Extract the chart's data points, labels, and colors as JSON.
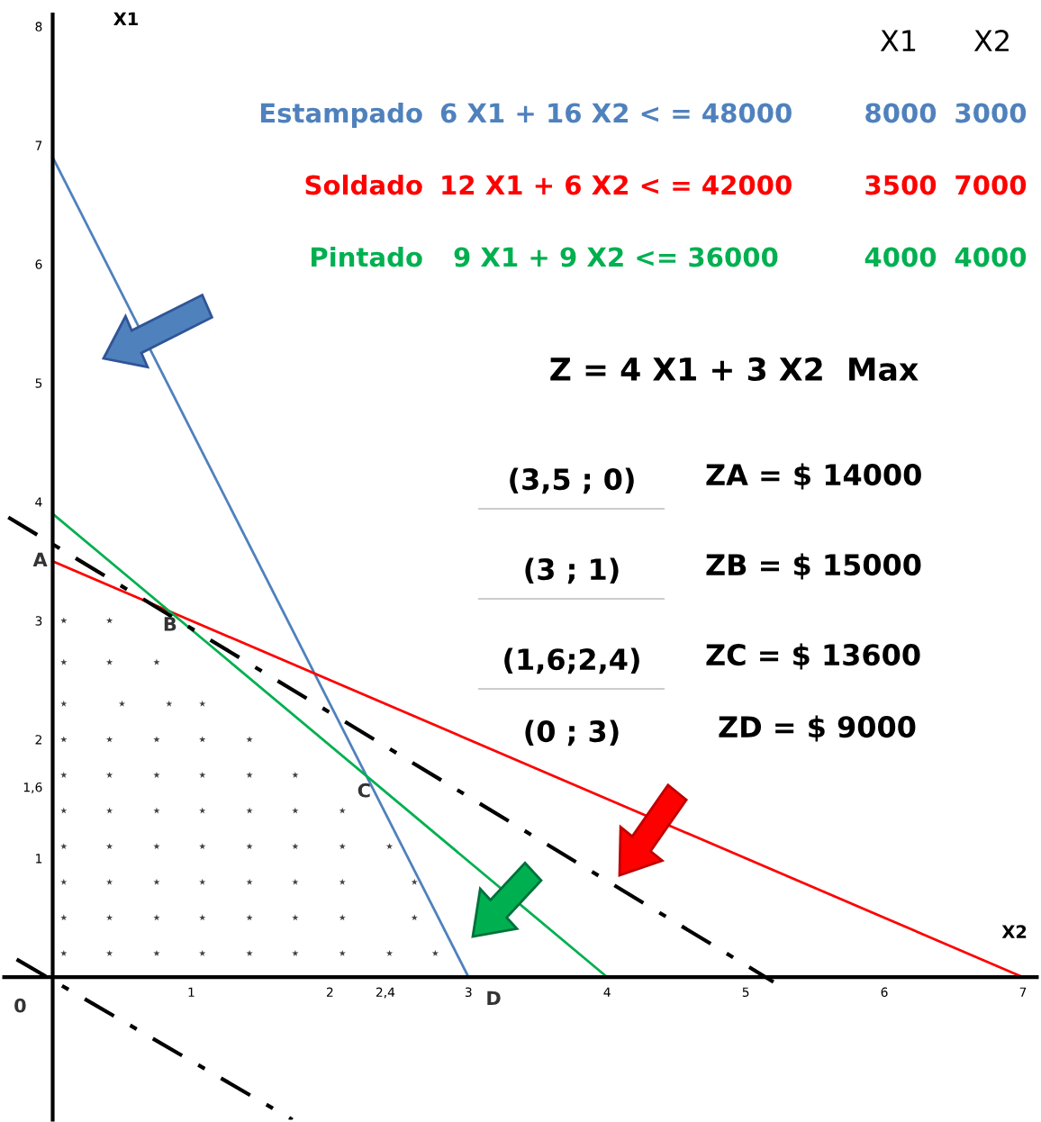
{
  "chart_data": {
    "type": "line",
    "xlabel": "X2",
    "ylabel": "X1",
    "xlim": [
      -0.35,
      7.1
    ],
    "ylim": [
      -1.2,
      8.1
    ],
    "xticks": [
      1,
      2,
      {
        "value": 2.4,
        "label": "2,4"
      },
      3,
      4,
      5,
      6,
      7
    ],
    "yticks": [
      1,
      {
        "value": 1.6,
        "label": "1,6"
      },
      2,
      3,
      4,
      5,
      6,
      7,
      8
    ],
    "grid": false,
    "legend": false,
    "series": [
      {
        "name": "Estampado",
        "color": "#4f81bd",
        "x": [
          0,
          3
        ],
        "values": [
          6.9,
          0
        ]
      },
      {
        "name": "Soldado",
        "color": "#ff0000",
        "x": [
          0,
          7
        ],
        "values": [
          3.5,
          0
        ]
      },
      {
        "name": "Pintado",
        "color": "#00b050",
        "x": [
          0,
          4
        ],
        "values": [
          3.9,
          0
        ]
      },
      {
        "color": "#000000",
        "line_style": "dashed",
        "x": [
          -0.32,
          5.2
        ],
        "values": [
          3.87,
          -0.04
        ]
      },
      {
        "color": "#000000",
        "line_style": "dashed",
        "x": [
          -0.26,
          1.73
        ],
        "values": [
          0.15,
          -1.2
        ]
      },
      {
        "type": "scatter",
        "marker": "star",
        "color": "#404040",
        "x": [
          0.08,
          0.41,
          0.08,
          0.41,
          0.75,
          0.08,
          0.5,
          0.84,
          1.08,
          0.08,
          0.41,
          0.75,
          1.08,
          1.42,
          0.08,
          0.41,
          0.75,
          1.08,
          1.42,
          1.75,
          0.08,
          0.41,
          0.75,
          1.08,
          1.42,
          1.75,
          2.09,
          0.08,
          0.41,
          0.75,
          1.08,
          1.42,
          1.75,
          2.09,
          2.43,
          0.08,
          0.41,
          0.75,
          1.08,
          1.42,
          1.75,
          2.09,
          2.61,
          0.08,
          0.41,
          0.75,
          1.08,
          1.42,
          1.75,
          2.09,
          2.61,
          0.08,
          0.41,
          0.75,
          1.08,
          1.42,
          1.75,
          2.09,
          2.43,
          2.76
        ],
        "values": [
          3.0,
          3.0,
          2.65,
          2.65,
          2.65,
          2.3,
          2.3,
          2.3,
          2.3,
          2.0,
          2.0,
          2.0,
          2.0,
          2.0,
          1.7,
          1.7,
          1.7,
          1.7,
          1.7,
          1.7,
          1.4,
          1.4,
          1.4,
          1.4,
          1.4,
          1.4,
          1.4,
          1.1,
          1.1,
          1.1,
          1.1,
          1.1,
          1.1,
          1.1,
          1.1,
          0.8,
          0.8,
          0.8,
          0.8,
          0.8,
          0.8,
          0.8,
          0.8,
          0.5,
          0.5,
          0.5,
          0.5,
          0.5,
          0.5,
          0.5,
          0.5,
          0.2,
          0.2,
          0.2,
          0.2,
          0.2,
          0.2,
          0.2,
          0.2,
          0.2
        ]
      }
    ],
    "annotations": [
      {
        "text": "A",
        "x": 0,
        "y": 3.5
      },
      {
        "text": "B",
        "x": 1,
        "y": 3
      },
      {
        "text": "C",
        "x": 2.4,
        "y": 1.6
      },
      {
        "text": "D",
        "x": 3,
        "y": 0
      },
      "X1",
      "X2",
      "6 X1 + 16 X2 < = 48000",
      "8000",
      "3000",
      "12 X1 + 6 X2 < = 42000",
      "3500",
      "7000",
      "9 X1 + 9 X2 <= 36000",
      "4000",
      "4000",
      "Z = 4 X1 + 3 X2  Max",
      "(3,5 ; 0)",
      "ZA = $ 14000",
      "(3 ; 1)",
      "ZB = $ 15000",
      "(1,6;2,4)",
      "ZC = $ 13600",
      "(0 ; 3)",
      "ZD = $ 9000",
      "0"
    ]
  }
}
